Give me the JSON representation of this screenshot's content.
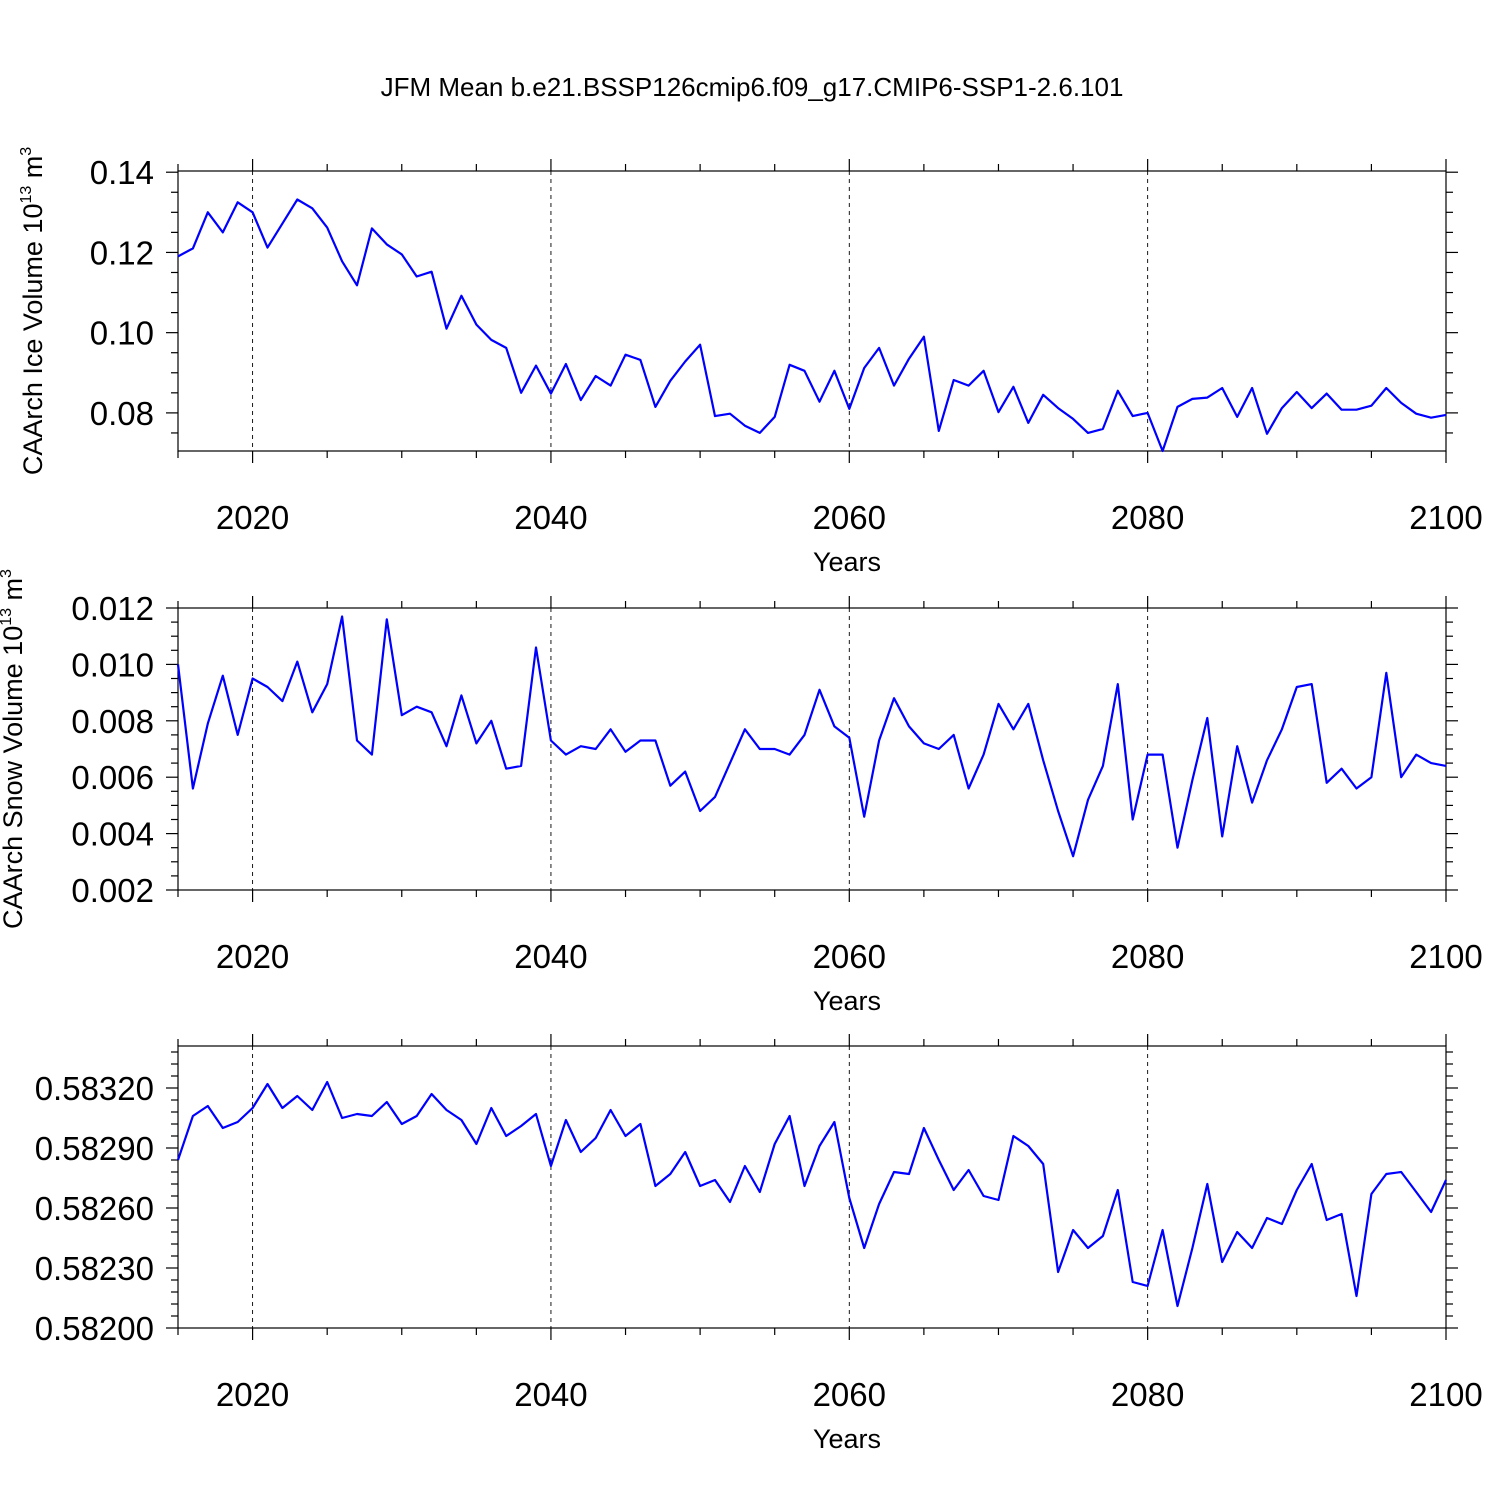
{
  "figure_title": "JFM Mean b.e21.BSSP126cmip6.f09_g17.CMIP6-SSP1-2.6.101",
  "chart_data": [
    {
      "type": "line",
      "ylabel": "CAArch Ice Volume 10",
      "ylabel_exponent": "13",
      "ylabel_unit": " m",
      "ylabel_unit_exponent": "3",
      "xlabel": "Years",
      "xlim": [
        2015,
        2100
      ],
      "ylim": [
        0.0705,
        0.1403
      ],
      "grid": "x-dashed",
      "x_ticks": [
        2020,
        2040,
        2060,
        2080,
        2100
      ],
      "y_ticks": [
        0.08,
        0.1,
        0.12,
        0.14
      ],
      "y_tick_labels": [
        "0.08",
        "0.10",
        "0.12",
        "0.14"
      ],
      "y_minor_step": 0.005,
      "series": [
        {
          "color": "#0000ff",
          "x_start": 2015,
          "values": [
            0.119,
            0.121,
            0.13,
            0.125,
            0.1325,
            0.13,
            0.1212,
            0.1272,
            0.1332,
            0.131,
            0.1262,
            0.1178,
            0.1118,
            0.126,
            0.122,
            0.1195,
            0.114,
            0.1152,
            0.101,
            0.1092,
            0.102,
            0.0982,
            0.0962,
            0.085,
            0.0918,
            0.0848,
            0.0922,
            0.0832,
            0.0892,
            0.0868,
            0.0945,
            0.0932,
            0.0815,
            0.088,
            0.0928,
            0.097,
            0.0792,
            0.0798,
            0.0768,
            0.075,
            0.079,
            0.092,
            0.0905,
            0.0828,
            0.0905,
            0.081,
            0.0912,
            0.0962,
            0.0868,
            0.0935,
            0.099,
            0.0755,
            0.0882,
            0.0868,
            0.0905,
            0.0802,
            0.0865,
            0.0775,
            0.0845,
            0.0812,
            0.0785,
            0.075,
            0.076,
            0.0855,
            0.0792,
            0.08,
            0.0705,
            0.0815,
            0.0835,
            0.0838,
            0.0862,
            0.079,
            0.0862,
            0.0748,
            0.0812,
            0.0852,
            0.0812,
            0.0848,
            0.0808,
            0.0808,
            0.0818,
            0.0862,
            0.0825,
            0.0798,
            0.0788,
            0.0795
          ]
        }
      ]
    },
    {
      "type": "line",
      "ylabel": "CAArch Snow Volume 10",
      "ylabel_exponent": "13",
      "ylabel_unit": " m",
      "ylabel_unit_exponent": "3",
      "xlabel": "Years",
      "xlim": [
        2015,
        2100
      ],
      "ylim": [
        0.002,
        0.012
      ],
      "grid": "x-dashed",
      "x_ticks": [
        2020,
        2040,
        2060,
        2080,
        2100
      ],
      "y_ticks": [
        0.002,
        0.004,
        0.006,
        0.008,
        0.01,
        0.012
      ],
      "y_tick_labels": [
        "0.002",
        "0.004",
        "0.006",
        "0.008",
        "0.010",
        "0.012"
      ],
      "y_minor_step": 0.0005,
      "series": [
        {
          "color": "#0000ff",
          "x_start": 2015,
          "values": [
            0.01,
            0.0056,
            0.0079,
            0.0096,
            0.0075,
            0.0095,
            0.0092,
            0.0087,
            0.0101,
            0.0083,
            0.0093,
            0.0117,
            0.0073,
            0.0068,
            0.0116,
            0.0082,
            0.0085,
            0.0083,
            0.0071,
            0.0089,
            0.0072,
            0.008,
            0.0063,
            0.0064,
            0.0106,
            0.0073,
            0.0068,
            0.0071,
            0.007,
            0.0077,
            0.0069,
            0.0073,
            0.0073,
            0.0057,
            0.0062,
            0.0048,
            0.0053,
            0.0065,
            0.0077,
            0.007,
            0.007,
            0.0068,
            0.0075,
            0.0091,
            0.0078,
            0.0074,
            0.0046,
            0.0073,
            0.0088,
            0.0078,
            0.0072,
            0.007,
            0.0075,
            0.0056,
            0.0068,
            0.0086,
            0.0077,
            0.0086,
            0.0066,
            0.0048,
            0.0032,
            0.0052,
            0.0064,
            0.0093,
            0.0045,
            0.0068,
            0.0068,
            0.0035,
            0.0059,
            0.0081,
            0.0039,
            0.0071,
            0.0051,
            0.0066,
            0.0077,
            0.0092,
            0.0093,
            0.0058,
            0.0063,
            0.0056,
            0.006,
            0.0097,
            0.006,
            0.0068,
            0.0065,
            0.0064
          ]
        }
      ]
    },
    {
      "type": "line",
      "ylabel": "",
      "xlabel": "Years",
      "xlim": [
        2015,
        2100
      ],
      "ylim": [
        0.582,
        0.58341
      ],
      "grid": "x-dashed",
      "x_ticks": [
        2020,
        2040,
        2060,
        2080,
        2100
      ],
      "y_ticks": [
        0.582,
        0.5823,
        0.5826,
        0.5829,
        0.5832
      ],
      "y_tick_labels": [
        "0.58200",
        "0.58230",
        "0.58260",
        "0.58290",
        "0.58320"
      ],
      "y_minor_step": 6e-05,
      "series": [
        {
          "color": "#0000ff",
          "x_start": 2015,
          "values": [
            0.58284,
            0.58306,
            0.58311,
            0.583,
            0.58303,
            0.5831,
            0.58322,
            0.5831,
            0.58316,
            0.58309,
            0.58323,
            0.58305,
            0.58307,
            0.58306,
            0.58313,
            0.58302,
            0.58306,
            0.58317,
            0.58309,
            0.58304,
            0.58292,
            0.5831,
            0.58296,
            0.58301,
            0.58307,
            0.58281,
            0.58304,
            0.58288,
            0.58295,
            0.58309,
            0.58296,
            0.58302,
            0.58271,
            0.58277,
            0.58288,
            0.58271,
            0.58274,
            0.58263,
            0.58281,
            0.58268,
            0.58292,
            0.58306,
            0.58271,
            0.58291,
            0.58303,
            0.58265,
            0.5824,
            0.58262,
            0.58278,
            0.58277,
            0.583,
            0.58284,
            0.58269,
            0.58279,
            0.58266,
            0.58264,
            0.58296,
            0.58291,
            0.58282,
            0.58228,
            0.58249,
            0.5824,
            0.58246,
            0.58269,
            0.58223,
            0.58221,
            0.58249,
            0.58211,
            0.5824,
            0.58272,
            0.58233,
            0.58248,
            0.5824,
            0.58255,
            0.58252,
            0.58269,
            0.58282,
            0.58254,
            0.58257,
            0.58216,
            0.58267,
            0.58277,
            0.58278,
            0.58268,
            0.58258,
            0.58274
          ]
        }
      ]
    }
  ]
}
